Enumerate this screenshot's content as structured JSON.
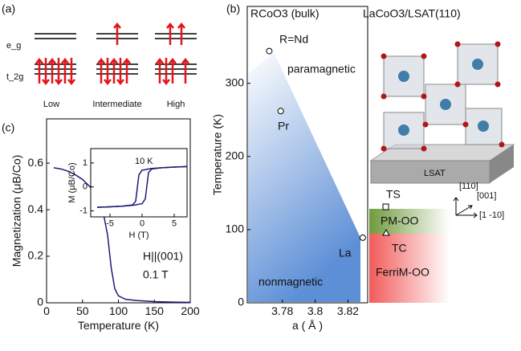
{
  "chart_data": [
    {
      "type": "line",
      "xlabel": "Temperature (K)",
      "ylabel": "Magnetization (μB/Co)",
      "x": [
        10,
        20,
        30,
        40,
        50,
        60,
        70,
        75,
        80,
        85,
        90,
        95,
        100,
        110,
        125,
        150,
        175,
        200
      ],
      "series": [
        {
          "color": "#1c1c78",
          "values": [
            0.58,
            0.575,
            0.565,
            0.55,
            0.53,
            0.5,
            0.46,
            0.42,
            0.37,
            0.29,
            0.15,
            0.06,
            0.03,
            0.015,
            0.01,
            0.005,
            0.003,
            0.002
          ]
        }
      ],
      "xlim": [
        0,
        200
      ],
      "xticks": [
        0,
        50,
        100,
        150,
        200
      ],
      "ylim": [
        0,
        0.79
      ],
      "yticks": [
        0,
        0.2,
        0.4,
        0.6
      ],
      "annotations": [
        "H||(001)",
        "0.1 T"
      ]
    },
    {
      "type": "line",
      "xlabel": "H (T)",
      "ylabel": "M (μB/Co)",
      "x": [
        -7,
        -5,
        -3,
        -1.5,
        -1,
        -0.5,
        0,
        0.5,
        1,
        1.5,
        3,
        5,
        7
      ],
      "series": [
        {
          "color": "#1c1c78",
          "values": [
            -0.85,
            -0.83,
            -0.8,
            -0.77,
            -0.75,
            -0.72,
            -0.7,
            -0.5,
            0.6,
            0.75,
            0.8,
            0.83,
            0.85
          ]
        },
        {
          "color": "#1c1c78",
          "values": [
            -0.85,
            -0.83,
            -0.8,
            -0.75,
            -0.6,
            0.5,
            0.7,
            0.72,
            0.75,
            0.77,
            0.8,
            0.83,
            0.85
          ]
        }
      ],
      "xlim": [
        -8,
        7
      ],
      "xticks": [
        -5,
        0,
        5
      ],
      "ylim": [
        -1.25,
        1.6
      ],
      "yticks": [
        -1,
        0,
        1
      ],
      "annotations": [
        "10 K"
      ]
    },
    {
      "type": "scatter",
      "title": "RCoO3 (bulk)",
      "xlabel": "a ( Å )",
      "ylabel": "Temperature (K)",
      "x": [
        3.772,
        3.779,
        3.829
      ],
      "values": [
        344,
        262,
        89
      ],
      "point_labels": [
        "R=Nd",
        "Pr",
        "La"
      ],
      "xlim": [
        3.7586,
        3.832
      ],
      "xticks": [
        3.78,
        3.8,
        3.82
      ],
      "ylim": [
        0,
        405
      ],
      "yticks": [
        0,
        100,
        200,
        300
      ],
      "annotations": [
        "paramagnetic",
        "nonmagnetic"
      ]
    }
  ],
  "diagram": {
    "panel_labels": [
      "(a)",
      "(b)",
      "(c)"
    ],
    "levels": [
      "e_g",
      "t_2g"
    ],
    "spin_states": [
      "Low",
      "Intermediate",
      "High"
    ],
    "structure_title": "LaCoO3/LSAT(110)",
    "substrate": "LSAT",
    "directions": [
      "[110]",
      "[001]",
      "[1 -10]"
    ],
    "transitions": [
      "TS",
      "TC"
    ],
    "phases": [
      "PM-OO",
      "FerriM-OO"
    ]
  }
}
